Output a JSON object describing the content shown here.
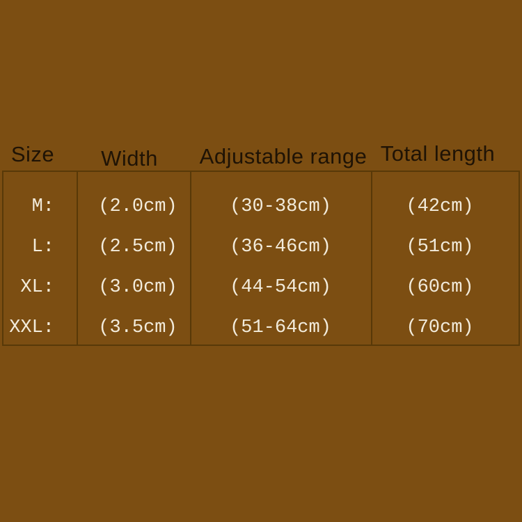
{
  "colors": {
    "background": "#7c4e12",
    "table_border": "#583908",
    "header_text": "#1f1305",
    "body_text": "#f2ebdb"
  },
  "table": {
    "headers": {
      "size": "Size",
      "width": "Width",
      "range": "Adjustable range",
      "total": "Total length"
    },
    "rows": [
      {
        "size": "M:",
        "width": "(2.0cm)",
        "range": "(30-38cm)",
        "total": "(42cm)"
      },
      {
        "size": "L:",
        "width": "(2.5cm)",
        "range": "(36-46cm)",
        "total": "(51cm)"
      },
      {
        "size": "XL:",
        "width": "(3.0cm)",
        "range": "(44-54cm)",
        "total": "(60cm)"
      },
      {
        "size": "XXL:",
        "width": "(3.5cm)",
        "range": "(51-64cm)",
        "total": "(70cm)"
      }
    ]
  }
}
